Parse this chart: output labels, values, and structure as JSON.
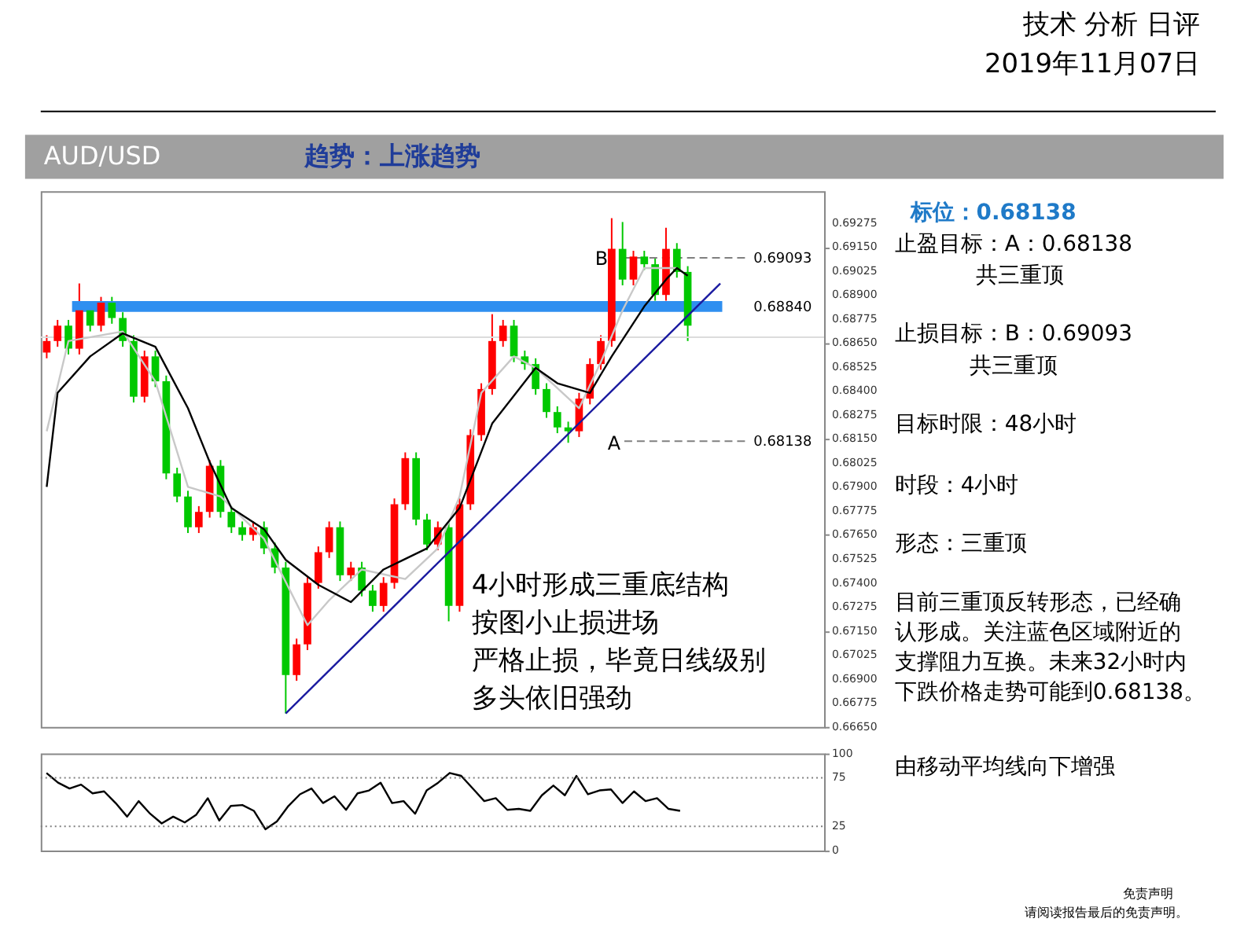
{
  "chart_data": [
    {
      "type": "candlestick",
      "tick_labels": "y",
      "grid": false,
      "ylim": [
        0.6665,
        0.6944
      ],
      "yticks": [
        {
          "value": 0.6665,
          "label": "0.66650"
        },
        {
          "value": 0.66775,
          "label": "0.66775"
        },
        {
          "value": 0.669,
          "label": "0.66900"
        },
        {
          "value": 0.67025,
          "label": "0.67025"
        },
        {
          "value": 0.6715,
          "label": "0.67150"
        },
        {
          "value": 0.67275,
          "label": "0.67275"
        },
        {
          "value": 0.674,
          "label": "0.67400"
        },
        {
          "value": 0.67525,
          "label": "0.67525"
        },
        {
          "value": 0.6765,
          "label": "0.67650"
        },
        {
          "value": 0.67775,
          "label": "0.67775"
        },
        {
          "value": 0.679,
          "label": "0.67900"
        },
        {
          "value": 0.68025,
          "label": "0.68025"
        },
        {
          "value": 0.6815,
          "label": "0.68150"
        },
        {
          "value": 0.68275,
          "label": "0.68275"
        },
        {
          "value": 0.684,
          "label": "0.68400"
        },
        {
          "value": 0.68525,
          "label": "0.68525"
        },
        {
          "value": 0.6865,
          "label": "0.68650"
        },
        {
          "value": 0.68775,
          "label": "0.68775"
        },
        {
          "value": 0.689,
          "label": "0.68900"
        },
        {
          "value": 0.69025,
          "label": "0.69025"
        },
        {
          "value": 0.6915,
          "label": "0.69150"
        },
        {
          "value": 0.69275,
          "label": "0.69275"
        }
      ],
      "categories": [
        null,
        null,
        null,
        null,
        null,
        null,
        null,
        null,
        null,
        null,
        null,
        null,
        null,
        null,
        null,
        null,
        null,
        null,
        null,
        null,
        null,
        null,
        null,
        null,
        null,
        null,
        null,
        null,
        null,
        null,
        null,
        null,
        null,
        null,
        null,
        null,
        null,
        null,
        null,
        null,
        null,
        null,
        null,
        null,
        null,
        null,
        null,
        null,
        null,
        null,
        null,
        null,
        null,
        null,
        null,
        null,
        null,
        null,
        null,
        null,
        null,
        null,
        null,
        null,
        null,
        null,
        null,
        null,
        null,
        null,
        null,
        null
      ],
      "ohlc": [
        [
          0.686,
          0.6869,
          0.6857,
          0.6866
        ],
        [
          0.6866,
          0.6877,
          0.6863,
          0.6874
        ],
        [
          0.6874,
          0.6877,
          0.6859,
          0.6862
        ],
        [
          0.6862,
          0.6896,
          0.6859,
          0.6882
        ],
        [
          0.6882,
          0.6885,
          0.6871,
          0.6874
        ],
        [
          0.6874,
          0.6889,
          0.6871,
          0.6886
        ],
        [
          0.6886,
          0.6889,
          0.6875,
          0.6878
        ],
        [
          0.6878,
          0.6881,
          0.6863,
          0.6866
        ],
        [
          0.6866,
          0.6869,
          0.6834,
          0.6837
        ],
        [
          0.6837,
          0.6861,
          0.6834,
          0.6858
        ],
        [
          0.6858,
          0.6861,
          0.6842,
          0.6845
        ],
        [
          0.6845,
          0.6848,
          0.6794,
          0.6797
        ],
        [
          0.6797,
          0.68,
          0.6782,
          0.6785
        ],
        [
          0.6785,
          0.6788,
          0.6766,
          0.6769
        ],
        [
          0.6769,
          0.678,
          0.6766,
          0.6777
        ],
        [
          0.6777,
          0.6804,
          0.6774,
          0.6801
        ],
        [
          0.6801,
          0.6804,
          0.6774,
          0.6777
        ],
        [
          0.6777,
          0.678,
          0.6766,
          0.6769
        ],
        [
          0.6769,
          0.6772,
          0.6762,
          0.6765
        ],
        [
          0.6765,
          0.6772,
          0.6762,
          0.6769
        ],
        [
          0.6769,
          0.6772,
          0.6755,
          0.6758
        ],
        [
          0.6758,
          0.6761,
          0.6745,
          0.6748
        ],
        [
          0.6748,
          0.6751,
          0.6672,
          0.6692
        ],
        [
          0.6692,
          0.6711,
          0.6689,
          0.6708
        ],
        [
          0.6708,
          0.6743,
          0.6705,
          0.674
        ],
        [
          0.674,
          0.6759,
          0.6737,
          0.6756
        ],
        [
          0.6756,
          0.6772,
          0.6753,
          0.6769
        ],
        [
          0.6769,
          0.6772,
          0.6741,
          0.6744
        ],
        [
          0.6744,
          0.6751,
          0.6741,
          0.6748
        ],
        [
          0.6748,
          0.6751,
          0.6733,
          0.6736
        ],
        [
          0.6736,
          0.6739,
          0.6725,
          0.6728
        ],
        [
          0.6728,
          0.6743,
          0.6725,
          0.674
        ],
        [
          0.674,
          0.6784,
          0.6737,
          0.6781
        ],
        [
          0.6781,
          0.6808,
          0.6778,
          0.6805
        ],
        [
          0.6805,
          0.6808,
          0.677,
          0.6773
        ],
        [
          0.6773,
          0.6776,
          0.6757,
          0.676
        ],
        [
          0.676,
          0.6772,
          0.6757,
          0.6769
        ],
        [
          0.6769,
          0.6772,
          0.672,
          0.6728
        ],
        [
          0.6728,
          0.6784,
          0.6725,
          0.6781
        ],
        [
          0.6781,
          0.682,
          0.6778,
          0.6817
        ],
        [
          0.6817,
          0.6844,
          0.6814,
          0.6841
        ],
        [
          0.6841,
          0.688,
          0.6838,
          0.6866
        ],
        [
          0.6866,
          0.6877,
          0.6863,
          0.6874
        ],
        [
          0.6874,
          0.6877,
          0.6855,
          0.6858
        ],
        [
          0.6858,
          0.6861,
          0.6851,
          0.6854
        ],
        [
          0.6854,
          0.6857,
          0.6838,
          0.6841
        ],
        [
          0.6841,
          0.6844,
          0.6826,
          0.6829
        ],
        [
          0.6829,
          0.6832,
          0.6818,
          0.6821
        ],
        [
          0.6821,
          0.6824,
          0.6813,
          0.6819
        ],
        [
          0.6819,
          0.6839,
          0.6816,
          0.6836
        ],
        [
          0.6836,
          0.6857,
          0.6833,
          0.6854
        ],
        [
          0.6854,
          0.6869,
          0.6851,
          0.6866
        ],
        [
          0.6866,
          0.693,
          0.6863,
          0.6914
        ],
        [
          0.6914,
          0.6928,
          0.6895,
          0.6898
        ],
        [
          0.6898,
          0.6913,
          0.6895,
          0.691
        ],
        [
          0.691,
          0.6913,
          0.6903,
          0.6906
        ],
        [
          0.6906,
          0.6909,
          0.6887,
          0.689
        ],
        [
          0.689,
          0.6925,
          0.6887,
          0.6914
        ],
        [
          0.6914,
          0.6917,
          0.6899,
          0.6902
        ],
        [
          0.6902,
          0.6905,
          0.6866,
          0.6874
        ],
        null,
        null,
        null,
        null,
        null,
        null,
        null,
        null,
        null,
        null,
        null,
        null
      ],
      "colors": [
        "#ff0000",
        "#ff0000",
        "#00c800",
        "#ff0000",
        "#00c800",
        "#ff0000",
        "#00c800",
        "#00c800",
        "#00c800",
        "#ff0000",
        "#00c800",
        "#00c800",
        "#00c800",
        "#00c800",
        "#ff0000",
        "#ff0000",
        "#00c800",
        "#00c800",
        "#00c800",
        "#ff0000",
        "#00c800",
        "#00c800",
        "#00c800",
        "#ff0000",
        "#ff0000",
        "#ff0000",
        "#ff0000",
        "#00c800",
        "#ff0000",
        "#00c800",
        "#00c800",
        "#ff0000",
        "#ff0000",
        "#ff0000",
        "#00c800",
        "#00c800",
        "#ff0000",
        "#00c800",
        "#ff0000",
        "#ff0000",
        "#ff0000",
        "#ff0000",
        "#ff0000",
        "#00c800",
        "#00c800",
        "#00c800",
        "#00c800",
        "#00c800",
        "#00c800",
        "#ff0000",
        "#ff0000",
        "#ff0000",
        "#ff0000",
        "#00c800",
        "#ff0000",
        "#00c800",
        "#00c800",
        "#ff0000",
        "#00c800",
        "#00c800",
        null,
        null,
        null,
        null,
        null,
        null,
        null,
        null,
        null,
        null,
        null,
        null
      ],
      "series": [
        {
          "type": "line",
          "color": "#c8c8c8",
          "values": [
            0.6819,
            null,
            0.6866,
            null,
            null,
            null,
            null,
            0.6871,
            null,
            null,
            0.6845,
            null,
            null,
            0.679,
            null,
            null,
            0.6785,
            null,
            null,
            null,
            0.6763,
            null,
            null,
            null,
            0.6718,
            null,
            0.6731,
            null,
            null,
            0.6747,
            null,
            null,
            null,
            0.6742,
            null,
            null,
            0.6758,
            null,
            0.6785,
            null,
            0.6839,
            null,
            null,
            0.6858,
            null,
            0.6852,
            null,
            null,
            null,
            0.6831,
            null,
            0.6855,
            null,
            0.6882,
            null,
            0.6904,
            null,
            null,
            0.6904,
            null,
            null,
            null,
            null,
            null,
            null,
            null,
            null,
            null,
            null,
            null,
            null,
            null
          ]
        },
        {
          "type": "line",
          "color": "#000000",
          "values": [
            0.679,
            0.6839,
            null,
            null,
            0.6858,
            null,
            null,
            0.687,
            null,
            null,
            0.6863,
            null,
            null,
            0.6831,
            null,
            0.6803,
            null,
            0.6779,
            null,
            null,
            0.6768,
            null,
            0.6752,
            null,
            null,
            0.6739,
            null,
            null,
            0.673,
            null,
            null,
            0.6747,
            null,
            null,
            null,
            0.6758,
            null,
            null,
            0.6779,
            null,
            null,
            0.6823,
            null,
            null,
            null,
            0.6852,
            null,
            0.6844,
            null,
            null,
            0.6839,
            null,
            0.6858,
            null,
            null,
            0.6884,
            null,
            0.6898,
            0.6904,
            0.69,
            null,
            null,
            null,
            null,
            null,
            null,
            null,
            null,
            null,
            null,
            null,
            null
          ]
        },
        {
          "type": "line",
          "color": "#1a1aa0",
          "values": [
            null,
            null,
            null,
            null,
            null,
            null,
            null,
            null,
            null,
            null,
            null,
            null,
            null,
            null,
            null,
            null,
            null,
            null,
            null,
            null,
            null,
            null,
            0.6672,
            null,
            null,
            null,
            null,
            null,
            null,
            null,
            null,
            null,
            null,
            null,
            null,
            null,
            null,
            null,
            null,
            null,
            null,
            null,
            null,
            null,
            null,
            null,
            null,
            null,
            null,
            null,
            null,
            null,
            null,
            null,
            null,
            null,
            null,
            null,
            null,
            null,
            null,
            null,
            0.6896,
            null,
            null,
            null,
            null,
            null,
            null,
            null,
            null,
            null
          ]
        }
      ],
      "ref_lines": [
        {
          "axis": "y",
          "value": 0.6868,
          "label": null,
          "color": "#dcdcdc",
          "line_style": "solid"
        },
        {
          "axis": "y",
          "value": 0.69093,
          "label": "0.69093",
          "color": "#808080",
          "line_style": "dashed"
        },
        {
          "axis": "y",
          "value": 0.6884,
          "label": "0.68840",
          "color": "#2f8ff0",
          "line_style": "solid"
        },
        {
          "axis": "y",
          "value": 0.68138,
          "label": "0.68138",
          "color": "#808080",
          "line_style": "dashed"
        }
      ],
      "annotations": [
        "技术 分析 日评",
        "2019年11月07日",
        "B",
        "A",
        "4小时形成三重底结构",
        "按图小止损进场",
        "严格止损，毕竟日线级别",
        "多头依旧强劲",
        "AUD/USD",
        "趋势：上涨趋势",
        "标位：0.68138",
        "止盈目标：A：0.68138",
        "共三重顶",
        "止损目标：B：0.69093",
        "共三重顶",
        "目标时限：48小时",
        "时段：4小时",
        "形态：三重顶",
        "目前三重顶反转形态，已经确",
        "认形成。关注蓝色区域附近的",
        "支撑阻力互换。未来32小时内",
        "下跌价格走势可能到0.68138。"
      ]
    },
    {
      "type": "line",
      "tick_labels": "y",
      "grid": false,
      "ylim": [
        0,
        100
      ],
      "yticks": [
        0,
        25,
        75,
        100
      ],
      "categories": [
        null,
        null,
        null,
        null,
        null,
        null,
        null,
        null,
        null,
        null,
        null,
        null,
        null,
        null,
        null,
        null,
        null,
        null,
        null,
        null,
        null,
        null,
        null,
        null,
        null,
        null,
        null,
        null,
        null,
        null,
        null,
        null,
        null,
        null,
        null,
        null,
        null,
        null,
        null,
        null,
        null,
        null,
        null,
        null,
        null,
        null,
        null,
        null,
        null,
        null,
        null,
        null,
        null,
        null,
        null,
        null,
        null,
        null,
        null,
        null,
        null,
        null,
        null,
        null,
        null,
        null,
        null,
        null
      ],
      "series": [
        {
          "color": "#000000",
          "values": [
            80,
            70,
            64,
            68,
            59,
            61,
            49,
            35,
            51,
            38,
            28,
            35,
            29,
            37,
            54,
            31,
            46,
            47,
            41,
            22,
            30,
            46,
            58,
            64,
            49,
            56,
            42,
            59,
            62,
            70,
            49,
            51,
            38,
            62,
            70,
            80,
            77,
            64,
            51,
            54,
            42,
            43,
            41,
            57,
            67,
            57,
            77,
            58,
            62,
            63,
            49,
            61,
            51,
            54,
            43,
            41,
            null,
            null,
            null,
            null,
            null,
            null,
            null,
            null,
            null,
            null,
            null,
            null
          ]
        }
      ],
      "ref_lines": [
        {
          "axis": "y",
          "value": 75,
          "label": null,
          "color": "#808080",
          "line_style": "dotted"
        },
        {
          "axis": "y",
          "value": 25,
          "label": null,
          "color": "#808080",
          "line_style": "dotted"
        }
      ],
      "annotations": [
        "由移动平均线向下增强",
        "免责声明",
        "请阅读报告最后的免责声明。"
      ]
    }
  ]
}
